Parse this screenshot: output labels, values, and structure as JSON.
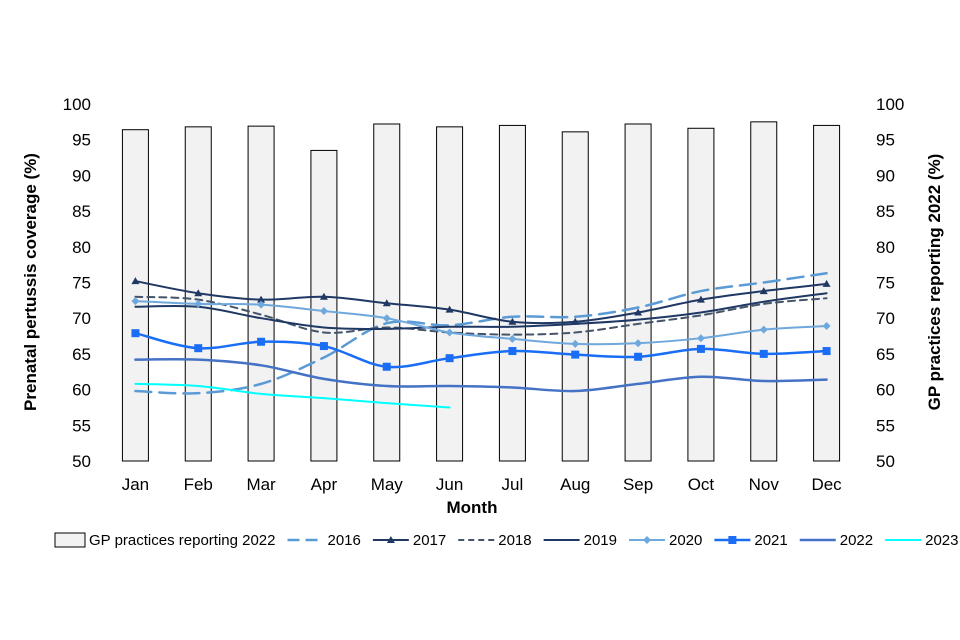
{
  "chart_data": {
    "type": "bar+line",
    "title": "",
    "xlabel": "Month",
    "ylabel_left": "Prenatal pertussis coverage (%)",
    "ylabel_right": "GP practices reporting 2022 (%)",
    "ylim": [
      50,
      100
    ],
    "yticks": [
      50,
      55,
      60,
      65,
      70,
      75,
      80,
      85,
      90,
      95,
      100
    ],
    "categories": [
      "Jan",
      "Feb",
      "Mar",
      "Apr",
      "May",
      "Jun",
      "Jul",
      "Aug",
      "Sep",
      "Oct",
      "Nov",
      "Dec"
    ],
    "bars": {
      "name": "GP practices reporting 2022",
      "color": "#f2f2f2",
      "edge": "#000000",
      "values": [
        96.4,
        96.8,
        96.9,
        93.5,
        97.2,
        96.8,
        97.0,
        96.1,
        97.2,
        96.6,
        97.5,
        97.0
      ]
    },
    "series": [
      {
        "name": "2016",
        "color": "#5b9bd5",
        "dash": "long",
        "marker": "none",
        "width": 2.5,
        "values": [
          59.8,
          59.5,
          60.8,
          64.5,
          69.3,
          69.0,
          70.2,
          70.2,
          71.5,
          73.8,
          75.0,
          76.3
        ]
      },
      {
        "name": "2017",
        "color": "#203864",
        "dash": "solid",
        "marker": "triangle",
        "width": 2,
        "values": [
          75.2,
          73.5,
          72.6,
          73.0,
          72.1,
          71.2,
          69.5,
          69.5,
          70.8,
          72.6,
          73.8,
          74.8
        ]
      },
      {
        "name": "2018",
        "color": "#44546a",
        "dash": "dash",
        "marker": "none",
        "width": 2,
        "values": [
          73.0,
          72.6,
          70.5,
          68.0,
          68.7,
          68.0,
          67.7,
          68.0,
          69.2,
          70.4,
          72.0,
          72.8
        ]
      },
      {
        "name": "2019",
        "color": "#1f3864",
        "dash": "solid",
        "marker": "none",
        "width": 2,
        "values": [
          71.6,
          71.6,
          70.0,
          68.7,
          68.5,
          68.8,
          68.8,
          69.2,
          69.8,
          70.8,
          72.3,
          73.5
        ]
      },
      {
        "name": "2020",
        "color": "#6fa8dc",
        "dash": "solid",
        "marker": "diamond",
        "width": 2,
        "values": [
          72.4,
          72.0,
          71.9,
          71.0,
          70.0,
          68.0,
          67.1,
          66.4,
          66.5,
          67.2,
          68.4,
          68.9
        ]
      },
      {
        "name": "2021",
        "color": "#1a6ef5",
        "dash": "solid",
        "marker": "square",
        "width": 2.5,
        "values": [
          67.9,
          65.8,
          66.7,
          66.1,
          63.2,
          64.4,
          65.4,
          64.9,
          64.6,
          65.7,
          65.0,
          65.4
        ]
      },
      {
        "name": "2022",
        "color": "#4472c4",
        "dash": "solid",
        "marker": "none",
        "width": 2.5,
        "values": [
          64.2,
          64.2,
          63.4,
          61.5,
          60.5,
          60.5,
          60.3,
          59.8,
          60.8,
          61.8,
          61.2,
          61.4
        ]
      },
      {
        "name": "2023",
        "color": "#00ffff",
        "dash": "solid",
        "marker": "none",
        "width": 2,
        "values": [
          60.8,
          60.5,
          59.4,
          58.8,
          58.1,
          57.5,
          null,
          null,
          null,
          null,
          null,
          null
        ]
      }
    ]
  }
}
